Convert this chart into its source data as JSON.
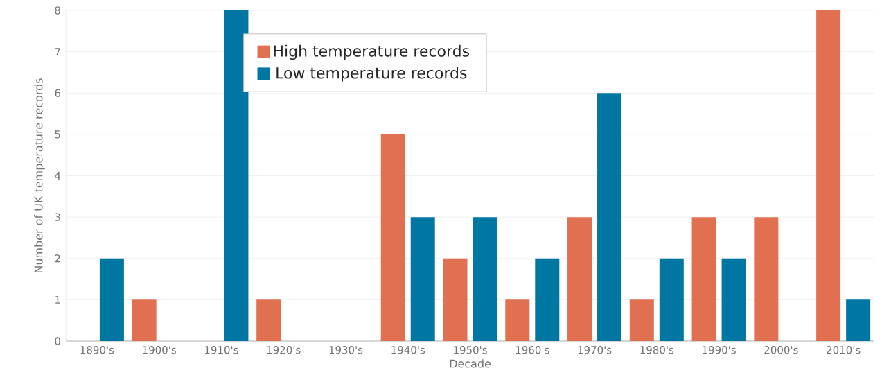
{
  "chart_data": {
    "type": "bar",
    "xlabel": "Decade",
    "ylabel": "Number of UK temperature records",
    "categories": [
      "1890's",
      "1900's",
      "1910's",
      "1920's",
      "1930's",
      "1940's",
      "1950's",
      "1960's",
      "1970's",
      "1980's",
      "1990's",
      "2000's",
      "2010's"
    ],
    "series": [
      {
        "name": "High temperature records",
        "color": "#e07050",
        "values": [
          0,
          1,
          0,
          1,
          0,
          5,
          2,
          1,
          3,
          1,
          3,
          3,
          8
        ]
      },
      {
        "name": "Low temperature records",
        "color": "#0076a3",
        "values": [
          2,
          0,
          8,
          0,
          0,
          3,
          3,
          2,
          6,
          2,
          2,
          0,
          1
        ]
      }
    ],
    "ylim": [
      0,
      8
    ],
    "yticks": [
      0,
      1,
      2,
      3,
      4,
      5,
      6,
      7,
      8
    ],
    "grid": "y",
    "legend": "top"
  }
}
